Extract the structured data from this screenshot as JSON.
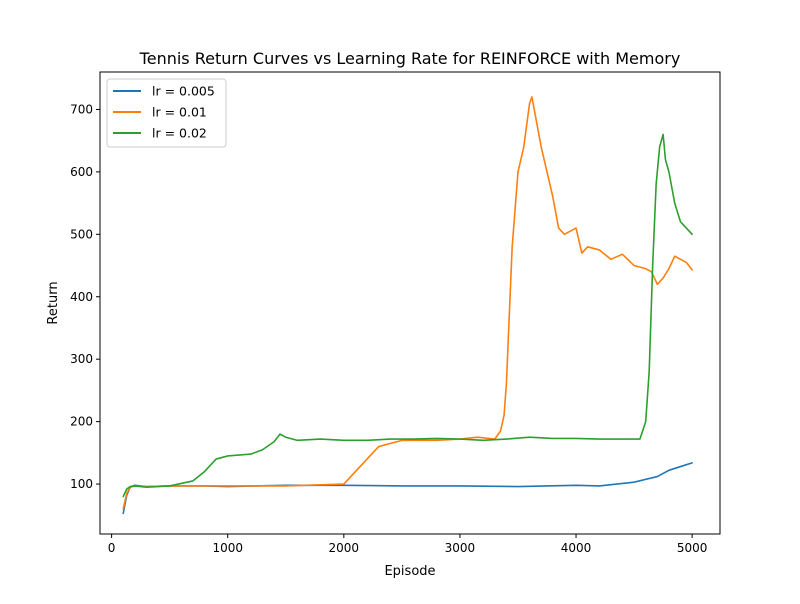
{
  "chart_data": {
    "type": "line",
    "title": "Tennis Return Curves vs Learning Rate for REINFORCE with Memory",
    "xlabel": "Episode",
    "ylabel": "Return",
    "xlim": [
      -100,
      5240
    ],
    "ylim": [
      20,
      760
    ],
    "grid": false,
    "legend_position": "top-left",
    "x_ticks": [
      0,
      1000,
      2000,
      3000,
      4000,
      5000
    ],
    "y_ticks": [
      100,
      200,
      300,
      400,
      500,
      600,
      700
    ],
    "series": [
      {
        "name": "lr = 0.005",
        "color": "#1f77b4",
        "x": [
          100,
          130,
          160,
          200,
          300,
          500,
          800,
          1000,
          1500,
          2000,
          2500,
          3000,
          3500,
          4000,
          4200,
          4500,
          4700,
          4800,
          4900,
          5000
        ],
        "y": [
          53,
          82,
          95,
          98,
          96,
          97,
          97,
          96,
          98,
          98,
          97,
          97,
          96,
          98,
          97,
          103,
          112,
          122,
          128,
          134
        ]
      },
      {
        "name": "lr = 0.01",
        "color": "#ff7f0e",
        "x": [
          100,
          130,
          160,
          200,
          300,
          500,
          800,
          1000,
          1500,
          2000,
          2050,
          2150,
          2300,
          2500,
          2800,
          3000,
          3150,
          3300,
          3350,
          3380,
          3400,
          3450,
          3500,
          3550,
          3600,
          3620,
          3650,
          3700,
          3750,
          3800,
          3850,
          3900,
          4000,
          4050,
          4100,
          4200,
          4300,
          4400,
          4500,
          4600,
          4650,
          4700,
          4750,
          4800,
          4850,
          4900,
          4950,
          5000
        ],
        "y": [
          60,
          85,
          95,
          97,
          96,
          97,
          97,
          97,
          97,
          100,
          110,
          130,
          160,
          170,
          170,
          172,
          175,
          172,
          185,
          210,
          260,
          480,
          600,
          640,
          710,
          720,
          690,
          640,
          600,
          560,
          510,
          500,
          510,
          470,
          480,
          475,
          460,
          468,
          450,
          445,
          440,
          420,
          430,
          445,
          465,
          460,
          455,
          443
        ]
      },
      {
        "name": "lr = 0.02",
        "color": "#2ca02c",
        "x": [
          100,
          130,
          160,
          200,
          300,
          500,
          700,
          800,
          900,
          1000,
          1200,
          1300,
          1400,
          1450,
          1500,
          1600,
          1800,
          2000,
          2200,
          2400,
          2600,
          2800,
          3000,
          3200,
          3400,
          3600,
          3800,
          4000,
          4200,
          4400,
          4500,
          4550,
          4600,
          4630,
          4660,
          4690,
          4720,
          4750,
          4770,
          4800,
          4850,
          4900,
          4950,
          5000
        ],
        "y": [
          80,
          92,
          96,
          97,
          95,
          97,
          105,
          120,
          140,
          145,
          148,
          155,
          168,
          180,
          175,
          170,
          172,
          170,
          170,
          172,
          172,
          173,
          172,
          170,
          172,
          175,
          173,
          173,
          172,
          172,
          172,
          172,
          200,
          280,
          450,
          580,
          640,
          660,
          620,
          600,
          550,
          520,
          510,
          500
        ]
      }
    ]
  }
}
